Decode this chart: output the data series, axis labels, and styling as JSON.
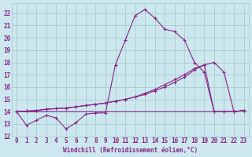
{
  "xlabel": "Windchill (Refroidissement éolien,°C)",
  "bg_color": "#cce8ee",
  "grid_color": "#aacccc",
  "line_color": "#882288",
  "xlim": [
    -0.5,
    23.5
  ],
  "ylim": [
    12,
    22.8
  ],
  "yticks": [
    12,
    13,
    14,
    15,
    16,
    17,
    18,
    19,
    20,
    21,
    22
  ],
  "xticks": [
    0,
    1,
    2,
    3,
    4,
    5,
    6,
    7,
    8,
    9,
    10,
    11,
    12,
    13,
    14,
    15,
    16,
    17,
    18,
    19,
    20,
    21,
    22,
    23
  ],
  "series": [
    [
      14.0,
      12.9,
      13.3,
      13.7,
      13.5,
      12.6,
      13.1,
      13.8,
      13.9,
      13.9,
      17.8,
      19.8,
      21.8,
      22.3,
      21.6,
      20.7,
      20.5,
      19.8,
      18.0,
      17.2,
      14.0,
      14.0,
      14.0,
      14.1
    ],
    [
      14.0,
      14.0,
      14.0,
      14.0,
      14.0,
      14.0,
      14.0,
      14.0,
      14.0,
      14.0,
      14.0,
      14.0,
      14.0,
      14.0,
      14.0,
      14.0,
      14.0,
      14.0,
      14.0,
      14.0,
      14.0,
      14.0,
      14.0,
      14.1
    ],
    [
      14.0,
      14.05,
      14.1,
      14.2,
      14.25,
      14.3,
      14.4,
      14.5,
      14.6,
      14.7,
      14.85,
      15.0,
      15.2,
      15.4,
      15.7,
      16.0,
      16.4,
      16.8,
      17.4,
      17.8,
      18.0,
      17.2,
      14.0,
      14.1
    ],
    [
      14.0,
      14.05,
      14.1,
      14.2,
      14.25,
      14.3,
      14.4,
      14.5,
      14.6,
      14.7,
      14.85,
      15.0,
      15.2,
      15.5,
      15.8,
      16.2,
      16.6,
      17.0,
      17.5,
      17.8,
      14.0,
      14.0,
      14.0,
      14.1
    ]
  ]
}
